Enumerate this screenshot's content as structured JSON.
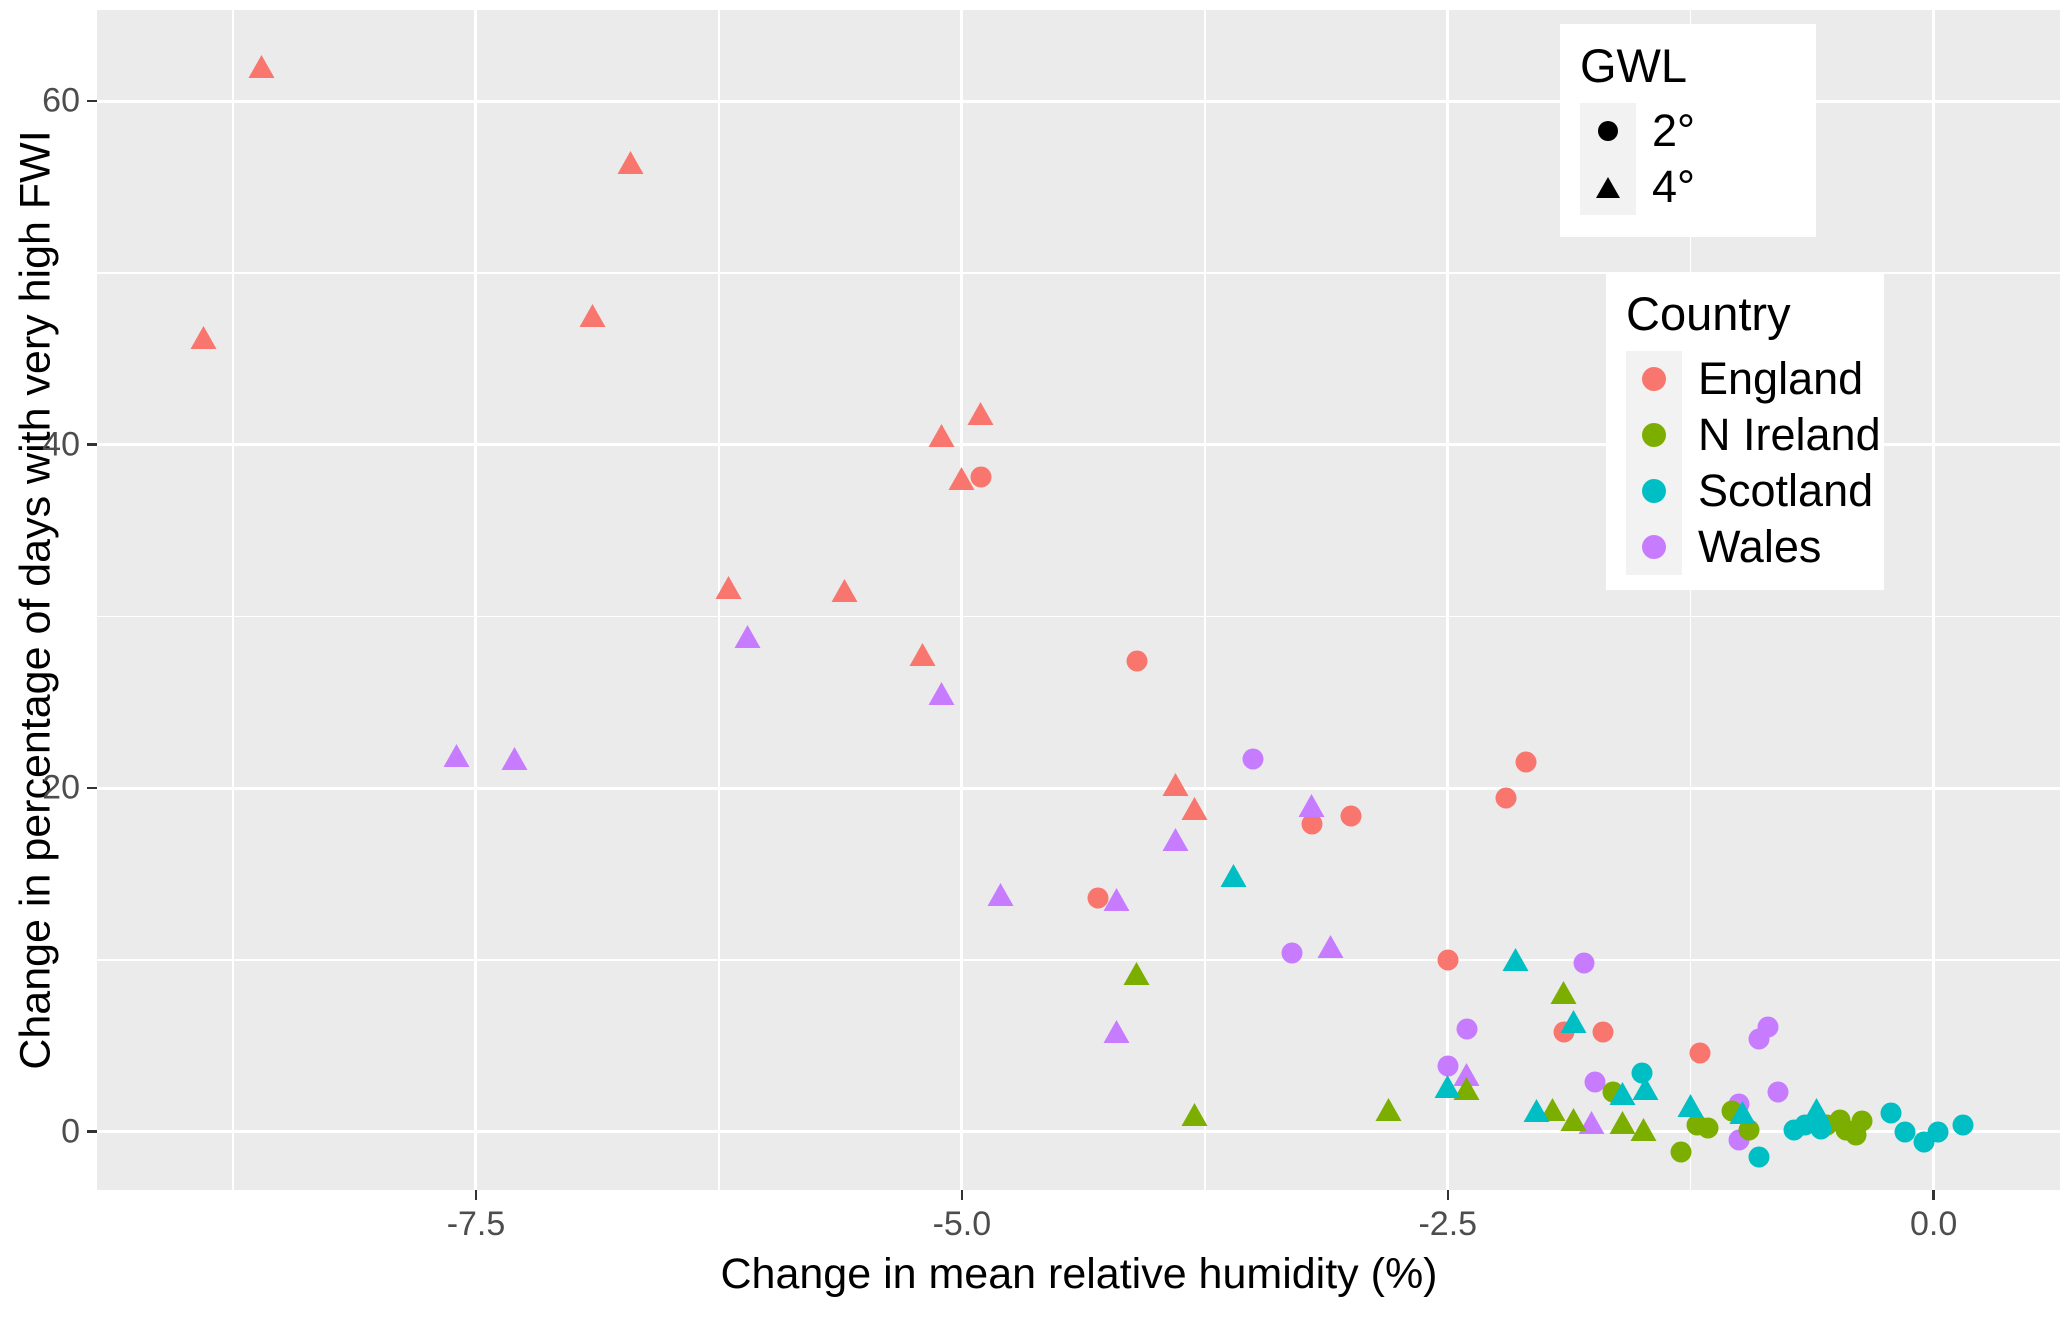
{
  "chart_data": {
    "type": "scatter",
    "title": "",
    "xlabel": "Change in mean relative humidity (%)",
    "ylabel": "Change in percentage of days with very high FWI",
    "xlim": [
      -9.45,
      0.65
    ],
    "ylim": [
      -3.4,
      65.3
    ],
    "x_ticks": [
      -7.5,
      -5.0,
      -2.5,
      0.0
    ],
    "x_tick_labels": [
      "-7.5",
      "-5.0",
      "-2.5",
      "0.0"
    ],
    "x_minor_ticks": [
      -8.75,
      -6.25,
      -3.75,
      -1.25
    ],
    "y_ticks": [
      0,
      20,
      40,
      60
    ],
    "y_tick_labels": [
      "0",
      "20",
      "40",
      "60"
    ],
    "y_minor_ticks": [
      10,
      30,
      50
    ],
    "grid": true,
    "panel_bg": "#EBEBEB",
    "grid_color": "#FFFFFF",
    "legend_gwl": {
      "title": "GWL",
      "items": [
        {
          "label": "2°",
          "shape": "circle"
        },
        {
          "label": "4°",
          "shape": "triangle"
        }
      ]
    },
    "legend_country": {
      "title": "Country",
      "items": [
        {
          "label": "England",
          "color": "#F8766D"
        },
        {
          "label": "N Ireland",
          "color": "#7CAE00"
        },
        {
          "label": "Scotland",
          "color": "#00BFC4"
        },
        {
          "label": "Wales",
          "color": "#C77CFF"
        }
      ]
    },
    "draw_order": [
      0,
      3,
      1,
      2
    ],
    "series": [
      {
        "name": "England",
        "color": "#F8766D",
        "points": [
          {
            "x": -8.6,
            "y": 61.8,
            "gwl": "4"
          },
          {
            "x": -8.9,
            "y": 46.0,
            "gwl": "4"
          },
          {
            "x": -6.9,
            "y": 47.3,
            "gwl": "4"
          },
          {
            "x": -6.7,
            "y": 56.2,
            "gwl": "4"
          },
          {
            "x": -6.2,
            "y": 31.5,
            "gwl": "4"
          },
          {
            "x": -5.6,
            "y": 31.3,
            "gwl": "4"
          },
          {
            "x": -5.2,
            "y": 27.6,
            "gwl": "4"
          },
          {
            "x": -5.1,
            "y": 40.3,
            "gwl": "4"
          },
          {
            "x": -5.0,
            "y": 37.8,
            "gwl": "4"
          },
          {
            "x": -4.9,
            "y": 41.6,
            "gwl": "4"
          },
          {
            "x": -3.9,
            "y": 20.0,
            "gwl": "4"
          },
          {
            "x": -3.8,
            "y": 18.6,
            "gwl": "4"
          },
          {
            "x": -4.9,
            "y": 38.1,
            "gwl": "2"
          },
          {
            "x": -4.3,
            "y": 13.6,
            "gwl": "2"
          },
          {
            "x": -4.1,
            "y": 27.4,
            "gwl": "2"
          },
          {
            "x": -3.2,
            "y": 17.9,
            "gwl": "2"
          },
          {
            "x": -3.0,
            "y": 18.4,
            "gwl": "2"
          },
          {
            "x": -2.5,
            "y": 10.0,
            "gwl": "2"
          },
          {
            "x": -2.2,
            "y": 19.4,
            "gwl": "2"
          },
          {
            "x": -2.1,
            "y": 21.5,
            "gwl": "2"
          },
          {
            "x": -1.9,
            "y": 5.8,
            "gwl": "2"
          },
          {
            "x": -1.7,
            "y": 5.8,
            "gwl": "2"
          },
          {
            "x": -1.2,
            "y": 4.6,
            "gwl": "2"
          }
        ]
      },
      {
        "name": "N Ireland",
        "color": "#7CAE00",
        "points": [
          {
            "x": -4.1,
            "y": 9.0,
            "gwl": "4"
          },
          {
            "x": -3.8,
            "y": 0.8,
            "gwl": "4"
          },
          {
            "x": -2.8,
            "y": 1.1,
            "gwl": "4"
          },
          {
            "x": -2.4,
            "y": 2.3,
            "gwl": "4"
          },
          {
            "x": -1.9,
            "y": 7.9,
            "gwl": "4"
          },
          {
            "x": -1.96,
            "y": 1.1,
            "gwl": "4"
          },
          {
            "x": -1.85,
            "y": 0.5,
            "gwl": "4"
          },
          {
            "x": -1.6,
            "y": 0.3,
            "gwl": "4"
          },
          {
            "x": -1.49,
            "y": -0.1,
            "gwl": "4"
          },
          {
            "x": -1.65,
            "y": 2.3,
            "gwl": "2"
          },
          {
            "x": -1.3,
            "y": -1.2,
            "gwl": "2"
          },
          {
            "x": -1.22,
            "y": 0.4,
            "gwl": "2"
          },
          {
            "x": -1.16,
            "y": 0.2,
            "gwl": "2"
          },
          {
            "x": -1.04,
            "y": 1.2,
            "gwl": "2"
          },
          {
            "x": -0.95,
            "y": 0.1,
            "gwl": "2"
          },
          {
            "x": -0.55,
            "y": 0.4,
            "gwl": "2"
          },
          {
            "x": -0.48,
            "y": 0.7,
            "gwl": "2"
          },
          {
            "x": -0.45,
            "y": 0.1,
            "gwl": "2"
          },
          {
            "x": -0.4,
            "y": -0.2,
            "gwl": "2"
          },
          {
            "x": -0.37,
            "y": 0.6,
            "gwl": "2"
          }
        ]
      },
      {
        "name": "Scotland",
        "color": "#00BFC4",
        "points": [
          {
            "x": -3.6,
            "y": 14.7,
            "gwl": "4"
          },
          {
            "x": -2.5,
            "y": 2.4,
            "gwl": "4"
          },
          {
            "x": -2.15,
            "y": 9.8,
            "gwl": "4"
          },
          {
            "x": -2.04,
            "y": 1.0,
            "gwl": "4"
          },
          {
            "x": -1.85,
            "y": 6.2,
            "gwl": "4"
          },
          {
            "x": -1.6,
            "y": 2.0,
            "gwl": "4"
          },
          {
            "x": -1.48,
            "y": 2.3,
            "gwl": "4"
          },
          {
            "x": -1.25,
            "y": 1.3,
            "gwl": "4"
          },
          {
            "x": -0.98,
            "y": 0.9,
            "gwl": "4"
          },
          {
            "x": -0.6,
            "y": 1.1,
            "gwl": "4"
          },
          {
            "x": -1.5,
            "y": 3.4,
            "gwl": "2"
          },
          {
            "x": -0.9,
            "y": -1.5,
            "gwl": "2"
          },
          {
            "x": -0.72,
            "y": 0.1,
            "gwl": "2"
          },
          {
            "x": -0.66,
            "y": 0.4,
            "gwl": "2"
          },
          {
            "x": -0.58,
            "y": 0.15,
            "gwl": "2"
          },
          {
            "x": -0.22,
            "y": 1.1,
            "gwl": "2"
          },
          {
            "x": -0.15,
            "y": 0.0,
            "gwl": "2"
          },
          {
            "x": -0.05,
            "y": -0.6,
            "gwl": "2"
          },
          {
            "x": 0.02,
            "y": 0.0,
            "gwl": "2"
          },
          {
            "x": 0.15,
            "y": 0.4,
            "gwl": "2"
          }
        ]
      },
      {
        "name": "Wales",
        "color": "#C77CFF",
        "points": [
          {
            "x": -7.6,
            "y": 21.7,
            "gwl": "4"
          },
          {
            "x": -7.3,
            "y": 21.5,
            "gwl": "4"
          },
          {
            "x": -6.1,
            "y": 28.6,
            "gwl": "4"
          },
          {
            "x": -5.1,
            "y": 25.3,
            "gwl": "4"
          },
          {
            "x": -4.8,
            "y": 13.6,
            "gwl": "4"
          },
          {
            "x": -4.2,
            "y": 13.3,
            "gwl": "4"
          },
          {
            "x": -4.2,
            "y": 5.6,
            "gwl": "4"
          },
          {
            "x": -3.9,
            "y": 16.8,
            "gwl": "4"
          },
          {
            "x": -3.2,
            "y": 18.8,
            "gwl": "4"
          },
          {
            "x": -3.1,
            "y": 10.6,
            "gwl": "4"
          },
          {
            "x": -2.4,
            "y": 3.1,
            "gwl": "4"
          },
          {
            "x": -1.76,
            "y": 0.3,
            "gwl": "4"
          },
          {
            "x": -3.5,
            "y": 21.7,
            "gwl": "2"
          },
          {
            "x": -3.3,
            "y": 10.4,
            "gwl": "2"
          },
          {
            "x": -2.5,
            "y": 3.8,
            "gwl": "2"
          },
          {
            "x": -2.4,
            "y": 6.0,
            "gwl": "2"
          },
          {
            "x": -1.8,
            "y": 9.8,
            "gwl": "2"
          },
          {
            "x": -1.74,
            "y": 2.9,
            "gwl": "2"
          },
          {
            "x": -1.0,
            "y": 1.6,
            "gwl": "2"
          },
          {
            "x": -1.0,
            "y": -0.5,
            "gwl": "2"
          },
          {
            "x": -0.9,
            "y": 5.4,
            "gwl": "2"
          },
          {
            "x": -0.85,
            "y": 6.1,
            "gwl": "2"
          },
          {
            "x": -0.8,
            "y": 2.3,
            "gwl": "2"
          }
        ]
      }
    ]
  }
}
